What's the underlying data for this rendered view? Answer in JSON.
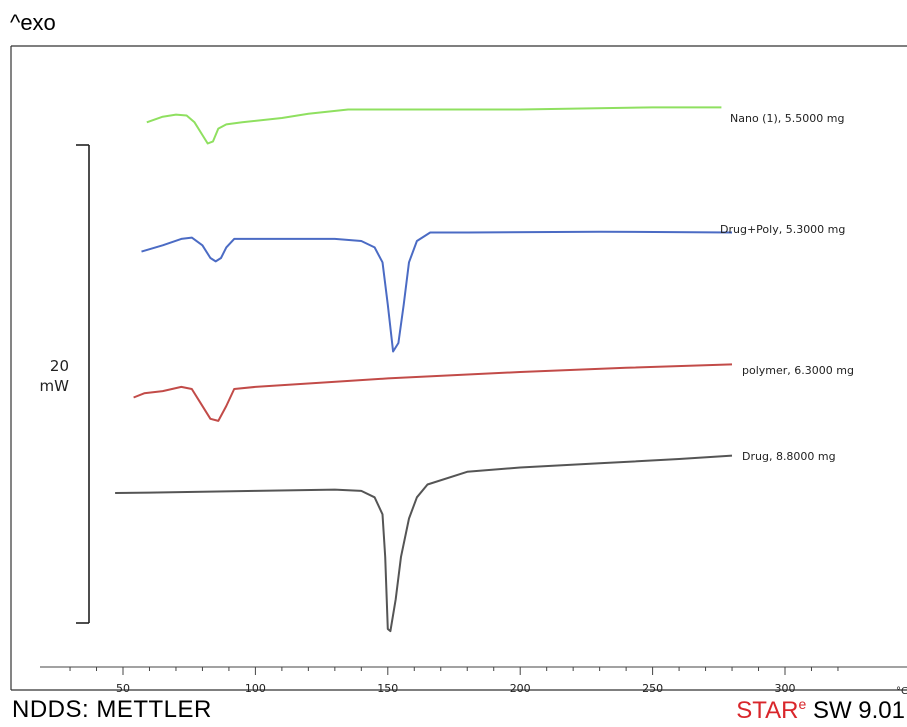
{
  "header": {
    "exo_label": "^exo"
  },
  "footer": {
    "left_text": "NDDS: METTLER",
    "right_brand_a": "S",
    "right_brand_b": "TAR",
    "right_brand_sup": "e",
    "right_version": " SW 9.01"
  },
  "chart_data": {
    "type": "line",
    "title": "",
    "xlabel": "",
    "ylabel": "",
    "x_unit": "°C",
    "xlim": [
      20,
      320
    ],
    "x_ticks": [
      50,
      100,
      150,
      200,
      250,
      300
    ],
    "scale_bar": {
      "value": "20",
      "unit": "mW"
    },
    "grid": false,
    "legend": "inline-right",
    "series": [
      {
        "name": "Nano   (1), 5.5000 mg",
        "color": "#8fe060",
        "points": [
          [
            59,
            -1.0
          ],
          [
            65,
            0.3
          ],
          [
            70,
            0.8
          ],
          [
            74,
            0.6
          ],
          [
            77,
            -1.0
          ],
          [
            80,
            -4.0
          ],
          [
            82,
            -6.0
          ],
          [
            84,
            -5.5
          ],
          [
            86,
            -2.5
          ],
          [
            89,
            -1.5
          ],
          [
            95,
            -1.0
          ],
          [
            110,
            0.0
          ],
          [
            120,
            1.0
          ],
          [
            135,
            2.0
          ],
          [
            150,
            2.0
          ],
          [
            200,
            2.0
          ],
          [
            250,
            2.5
          ],
          [
            276,
            2.5
          ]
        ]
      },
      {
        "name": "Drug+Poly, 5.3000 mg",
        "color": "#4b6bc4",
        "points": [
          [
            57,
            -2.5
          ],
          [
            65,
            -1.0
          ],
          [
            72,
            0.5
          ],
          [
            76,
            0.8
          ],
          [
            80,
            -1.0
          ],
          [
            83,
            -4.0
          ],
          [
            85,
            -4.8
          ],
          [
            87,
            -4.0
          ],
          [
            89,
            -1.5
          ],
          [
            92,
            0.5
          ],
          [
            100,
            0.5
          ],
          [
            130,
            0.5
          ],
          [
            140,
            0.0
          ],
          [
            145,
            -1.5
          ],
          [
            148,
            -5.0
          ],
          [
            150,
            -15.0
          ],
          [
            152,
            -26.0
          ],
          [
            154,
            -24.0
          ],
          [
            156,
            -15.0
          ],
          [
            158,
            -5.0
          ],
          [
            161,
            0.0
          ],
          [
            166,
            2.0
          ],
          [
            180,
            2.0
          ],
          [
            230,
            2.2
          ],
          [
            280,
            2.0
          ]
        ]
      },
      {
        "name": "polymer, 6.3000 mg",
        "color": "#c24b48",
        "points": [
          [
            54,
            -2.0
          ],
          [
            58,
            -1.0
          ],
          [
            65,
            -0.5
          ],
          [
            72,
            0.5
          ],
          [
            76,
            0.0
          ],
          [
            79,
            -3.0
          ],
          [
            83,
            -7.0
          ],
          [
            86,
            -7.5
          ],
          [
            89,
            -4.0
          ],
          [
            92,
            0.0
          ],
          [
            100,
            0.5
          ],
          [
            150,
            2.5
          ],
          [
            200,
            4.0
          ],
          [
            240,
            5.0
          ],
          [
            280,
            5.8
          ]
        ]
      },
      {
        "name": "Drug, 8.8000 mg",
        "color": "#555555",
        "points": [
          [
            47,
            0.0
          ],
          [
            60,
            0.1
          ],
          [
            100,
            0.5
          ],
          [
            130,
            0.8
          ],
          [
            140,
            0.5
          ],
          [
            145,
            -1.0
          ],
          [
            148,
            -5.0
          ],
          [
            149,
            -15.0
          ],
          [
            150,
            -32.0
          ],
          [
            151,
            -32.5
          ],
          [
            153,
            -25.0
          ],
          [
            155,
            -15.0
          ],
          [
            158,
            -6.0
          ],
          [
            161,
            -1.0
          ],
          [
            165,
            2.0
          ],
          [
            180,
            5.0
          ],
          [
            200,
            6.0
          ],
          [
            230,
            7.0
          ],
          [
            260,
            8.0
          ],
          [
            280,
            8.8
          ]
        ]
      }
    ]
  }
}
